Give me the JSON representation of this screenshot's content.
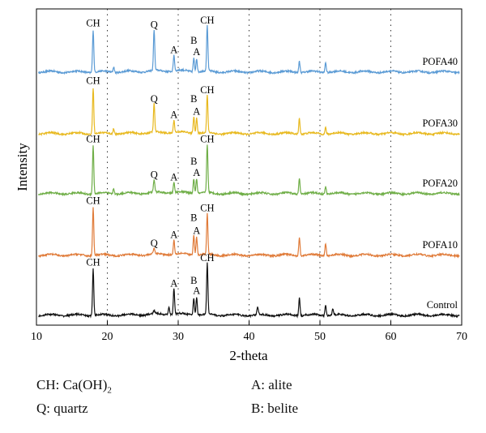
{
  "chart_data": {
    "type": "line",
    "xlabel": "2-theta",
    "ylabel": "Intensity",
    "xlim": [
      10,
      70
    ],
    "x_ticks": [
      "10",
      "20",
      "30",
      "40",
      "50",
      "60",
      "70"
    ],
    "grid": "dotted vertical lines at 20, 30, 40, 50, 60",
    "y_ticks": "none",
    "series": [
      {
        "name": "POFA40",
        "color": "#5b9bd5",
        "peaks": [
          {
            "x": 18.0,
            "h": 0.75
          },
          {
            "x": 20.9,
            "h": 0.1
          },
          {
            "x": 26.6,
            "h": 0.72
          },
          {
            "x": 29.4,
            "h": 0.28
          },
          {
            "x": 32.2,
            "h": 0.24
          },
          {
            "x": 32.6,
            "h": 0.24
          },
          {
            "x": 34.1,
            "h": 0.8
          },
          {
            "x": 47.1,
            "h": 0.2
          },
          {
            "x": 50.8,
            "h": 0.18
          }
        ],
        "peak_labels": [
          {
            "x": 18.0,
            "text": "CH"
          },
          {
            "x": 26.6,
            "text": "Q"
          },
          {
            "x": 29.4,
            "text": "A"
          },
          {
            "x": 32.2,
            "text": "B"
          },
          {
            "x": 32.6,
            "text": "A"
          },
          {
            "x": 34.1,
            "text": "CH"
          }
        ]
      },
      {
        "name": "POFA30",
        "color": "#e8b91f",
        "peaks": [
          {
            "x": 18.0,
            "h": 0.82
          },
          {
            "x": 20.9,
            "h": 0.1
          },
          {
            "x": 26.6,
            "h": 0.5
          },
          {
            "x": 29.4,
            "h": 0.22
          },
          {
            "x": 32.2,
            "h": 0.3
          },
          {
            "x": 32.6,
            "h": 0.28
          },
          {
            "x": 34.1,
            "h": 0.66
          },
          {
            "x": 47.1,
            "h": 0.28
          },
          {
            "x": 50.8,
            "h": 0.12
          }
        ],
        "peak_labels": [
          {
            "x": 18.0,
            "text": "CH"
          },
          {
            "x": 26.6,
            "text": "Q"
          },
          {
            "x": 29.4,
            "text": "A"
          },
          {
            "x": 32.2,
            "text": "B"
          },
          {
            "x": 32.6,
            "text": "A"
          },
          {
            "x": 34.1,
            "text": "CH"
          }
        ]
      },
      {
        "name": "POFA20",
        "color": "#6fae47",
        "peaks": [
          {
            "x": 18.0,
            "h": 0.85
          },
          {
            "x": 20.9,
            "h": 0.1
          },
          {
            "x": 26.6,
            "h": 0.22
          },
          {
            "x": 29.4,
            "h": 0.18
          },
          {
            "x": 32.2,
            "h": 0.26
          },
          {
            "x": 32.6,
            "h": 0.26
          },
          {
            "x": 34.1,
            "h": 0.85
          },
          {
            "x": 47.1,
            "h": 0.28
          },
          {
            "x": 50.8,
            "h": 0.14
          }
        ],
        "peak_labels": [
          {
            "x": 18.0,
            "text": "CH"
          },
          {
            "x": 26.6,
            "text": "Q"
          },
          {
            "x": 29.4,
            "text": "A"
          },
          {
            "x": 32.2,
            "text": "B"
          },
          {
            "x": 32.6,
            "text": "A"
          },
          {
            "x": 34.1,
            "text": "CH"
          }
        ]
      },
      {
        "name": "POFA10",
        "color": "#e07b39",
        "peaks": [
          {
            "x": 18.0,
            "h": 0.85
          },
          {
            "x": 26.6,
            "h": 0.1
          },
          {
            "x": 29.4,
            "h": 0.25
          },
          {
            "x": 32.2,
            "h": 0.35
          },
          {
            "x": 32.6,
            "h": 0.32
          },
          {
            "x": 34.1,
            "h": 0.72
          },
          {
            "x": 47.1,
            "h": 0.32
          },
          {
            "x": 50.8,
            "h": 0.22
          }
        ],
        "peak_labels": [
          {
            "x": 18.0,
            "text": "CH"
          },
          {
            "x": 26.6,
            "text": "Q"
          },
          {
            "x": 29.4,
            "text": "A"
          },
          {
            "x": 32.2,
            "text": "B"
          },
          {
            "x": 32.6,
            "text": "A"
          },
          {
            "x": 34.1,
            "text": "CH"
          }
        ]
      },
      {
        "name": "Control",
        "color": "#111111",
        "peaks": [
          {
            "x": 18.0,
            "h": 0.82
          },
          {
            "x": 26.6,
            "h": 0.06
          },
          {
            "x": 28.7,
            "h": 0.15
          },
          {
            "x": 29.4,
            "h": 0.45
          },
          {
            "x": 32.2,
            "h": 0.3
          },
          {
            "x": 32.6,
            "h": 0.32
          },
          {
            "x": 34.1,
            "h": 0.9
          },
          {
            "x": 41.2,
            "h": 0.14
          },
          {
            "x": 47.1,
            "h": 0.32
          },
          {
            "x": 50.8,
            "h": 0.18
          },
          {
            "x": 51.8,
            "h": 0.1
          }
        ],
        "peak_labels": [
          {
            "x": 18.0,
            "text": "CH"
          },
          {
            "x": 29.4,
            "text": "A"
          },
          {
            "x": 32.2,
            "text": "B"
          },
          {
            "x": 32.6,
            "text": "A"
          },
          {
            "x": 34.1,
            "text": "CH"
          }
        ]
      }
    ]
  },
  "legend": {
    "ch": {
      "prefix": "CH: Ca(OH)",
      "sub": "2"
    },
    "q": "Q: quartz",
    "a": "A: alite",
    "b": "B: belite"
  }
}
